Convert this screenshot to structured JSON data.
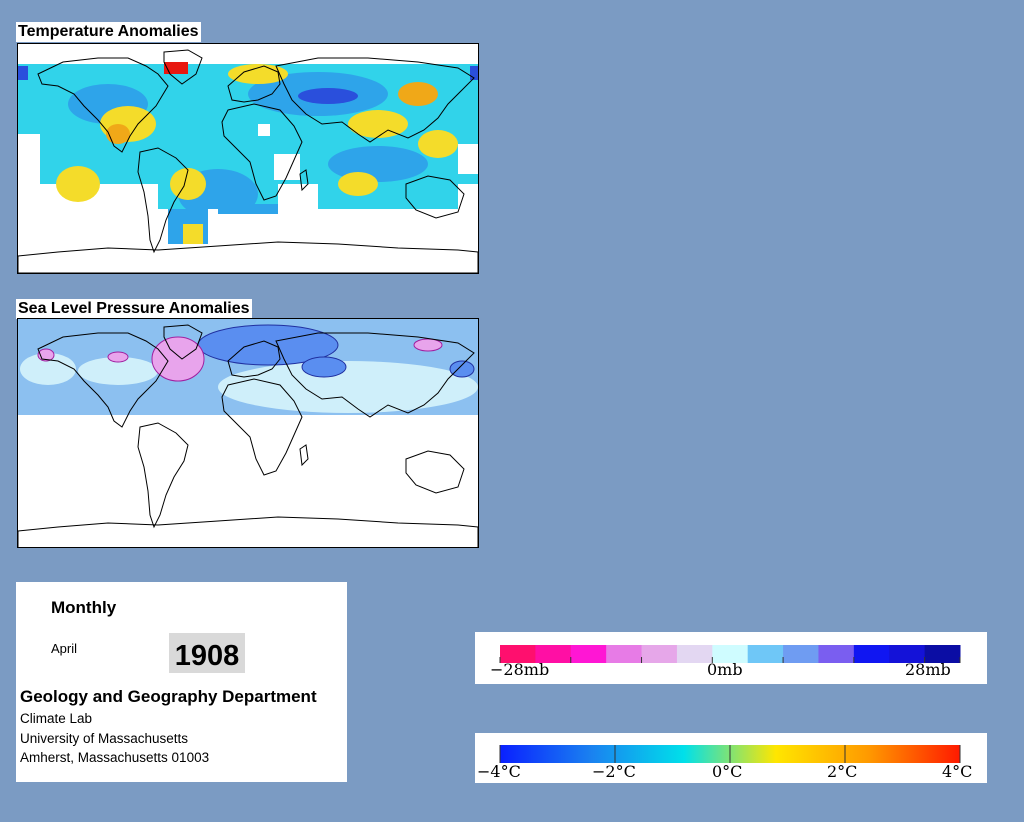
{
  "temperature_panel": {
    "title": "Temperature Anomalies"
  },
  "pressure_panel": {
    "title": "Sea Level Pressure Anomalies"
  },
  "info": {
    "frequency": "Monthly",
    "month": "April",
    "year": "1908",
    "department": "Geology and Geography Department",
    "lab": "Climate Lab",
    "university": "University of Massachusetts",
    "address": "Amherst, Massachusetts 01003"
  },
  "pressure_legend": {
    "labels": [
      "−28mb",
      "0mb",
      "28mb"
    ],
    "colors": [
      "#ff0f6e",
      "#ff0fa4",
      "#ff16d4",
      "#e77be6",
      "#e6a7e9",
      "#e3d7f2",
      "#cffcff",
      "#6fc7f7",
      "#6f9cf2",
      "#7a5ef0",
      "#1016f2",
      "#1412d8",
      "#0b0da4"
    ]
  },
  "temperature_legend": {
    "labels": [
      "−4°C",
      "−2°C",
      "0°C",
      "2°C",
      "4°C"
    ],
    "color_stops": [
      "#0a20ff",
      "#1a82f0",
      "#00e0ea",
      "#ffe600",
      "#ff9a00",
      "#ff1a00"
    ]
  },
  "map_colors": {
    "temp_blue_dark": "#2a4fdc",
    "temp_blue": "#2ea4ea",
    "temp_cyan": "#31d3ea",
    "temp_yellow": "#f4dc2a",
    "temp_orange": "#f0a818",
    "temp_red": "#e81810",
    "slp_light": "#cfeffa",
    "slp_blue": "#8cc0f0",
    "slp_mid": "#5a8ef0",
    "slp_pink": "#e8a4ec"
  }
}
